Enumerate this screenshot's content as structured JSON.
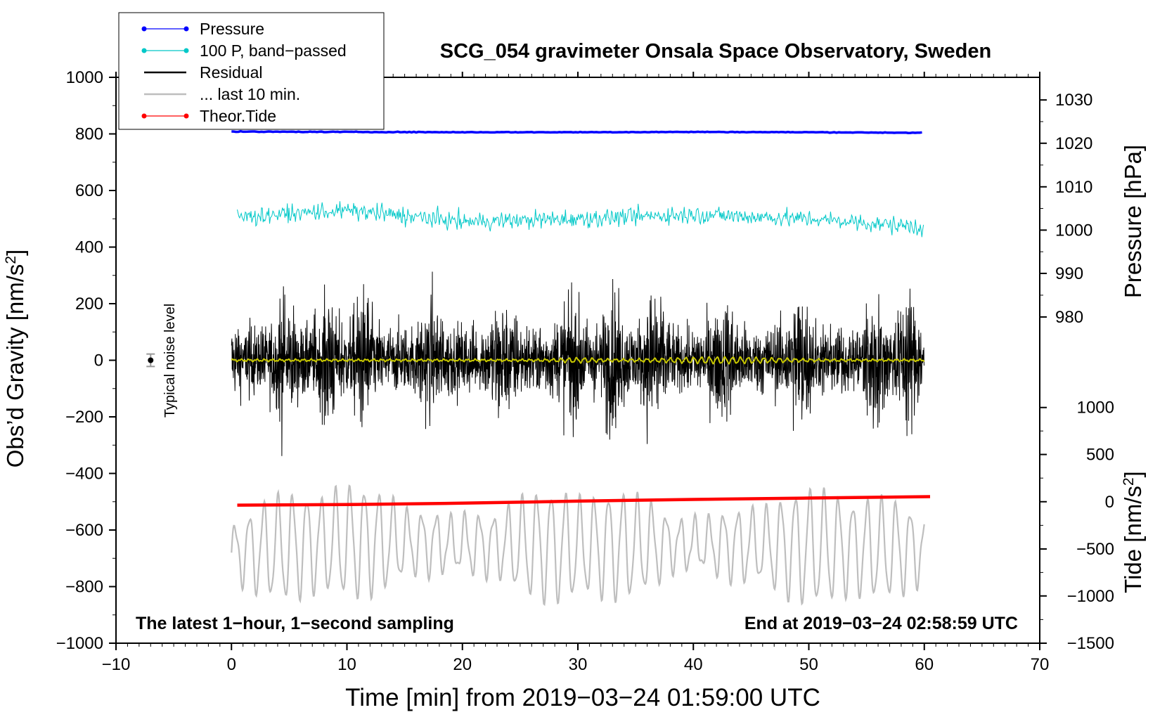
{
  "chart_data": {
    "type": "line",
    "title": "SCG_054 gravimeter Onsala Space Observatory, Sweden",
    "xlabel": "Time [min] from 2019−03−24 01:59:00 UTC",
    "ylabel": "Obs’d Gravity [nm/s²]",
    "ylabel_main": "Obs’d Gravity [nm/s",
    "ylabel_sup": "2",
    "ylabel_close": "]",
    "xlim": [
      -10,
      70
    ],
    "ylim": [
      -1000,
      1000
    ],
    "x_ticks": [
      "−10",
      "0",
      "10",
      "20",
      "30",
      "40",
      "50",
      "60",
      "70"
    ],
    "x_tick_values": [
      -10,
      0,
      10,
      20,
      30,
      40,
      50,
      60,
      70
    ],
    "y_ticks": [
      "1000",
      "800",
      "600",
      "400",
      "200",
      "0",
      "−200",
      "−400",
      "−600",
      "−800",
      "−1000"
    ],
    "y_tick_values": [
      1000,
      800,
      600,
      400,
      200,
      0,
      -200,
      -400,
      -600,
      -800,
      -1000
    ],
    "pressure_axis": {
      "label": "Pressure [hPa]",
      "ticks": [
        "1030",
        "1020",
        "1010",
        "1000",
        "990",
        "980"
      ],
      "tick_values": [
        1030,
        1020,
        1010,
        1000,
        990,
        980
      ],
      "gravity_equivalent": [
        920,
        767,
        613,
        460,
        307,
        153
      ]
    },
    "tide_axis": {
      "label_main": "Tide [nm/s",
      "label_sup": "2",
      "label_close": "]",
      "ticks": [
        "1000",
        "500",
        "0",
        "−500",
        "−1000",
        "−1500"
      ],
      "tick_values": [
        1000,
        500,
        0,
        -500,
        -1000,
        -1500
      ],
      "gravity_equivalent": [
        -167,
        -333,
        -500,
        -667,
        -833,
        -1000
      ]
    },
    "series": [
      {
        "name": "Pressure",
        "color": "#0000ff",
        "x": [
          0,
          10,
          20,
          30,
          40,
          50,
          60
        ],
        "values": [
          808,
          807,
          806,
          806,
          807,
          806,
          804
        ]
      },
      {
        "name": "100 P, band−passed",
        "color": "#00c8c8",
        "x": [
          0,
          10,
          20,
          30,
          40,
          50,
          60
        ],
        "values": [
          505,
          530,
          490,
          500,
          515,
          500,
          470
        ]
      },
      {
        "name": "Residual",
        "color": "#000000",
        "x": [
          0,
          60
        ],
        "values": [
          0,
          0
        ],
        "envelope": [
          260,
          405,
          -415
        ]
      },
      {
        "name": "... last 10 min.",
        "color": "#bebebe",
        "x": [
          0,
          10,
          20,
          30,
          40,
          50,
          60
        ],
        "values": [
          -680,
          -640,
          -650,
          -660,
          -650,
          -660,
          -670
        ]
      },
      {
        "name": "Theor.Tide",
        "color": "#ff0000",
        "x": [
          0.5,
          10,
          20,
          30,
          40,
          50,
          60.5
        ],
        "values": [
          -512,
          -510,
          -505,
          -498,
          -492,
          -487,
          -482
        ]
      }
    ],
    "legend": {
      "position": "top-left",
      "entries": [
        {
          "label": "Pressure",
          "color": "#0000ff",
          "marker": true
        },
        {
          "label": "100 P, band−passed",
          "color": "#00c8c8",
          "marker": true
        },
        {
          "label": "Residual",
          "color": "#000000",
          "marker": false
        },
        {
          "label": "... last 10 min.",
          "color": "#bebebe",
          "marker": false
        },
        {
          "label": "Theor.Tide",
          "color": "#ff0000",
          "marker": true
        }
      ]
    },
    "annotations": {
      "bottom_left": "The latest 1−hour, 1−second sampling",
      "bottom_right": "End at 2019−03−24 02:58:59 UTC",
      "noise_label": "Typical noise level",
      "noise_bar": {
        "x": -7,
        "y": 0,
        "half_range": 22
      }
    }
  }
}
